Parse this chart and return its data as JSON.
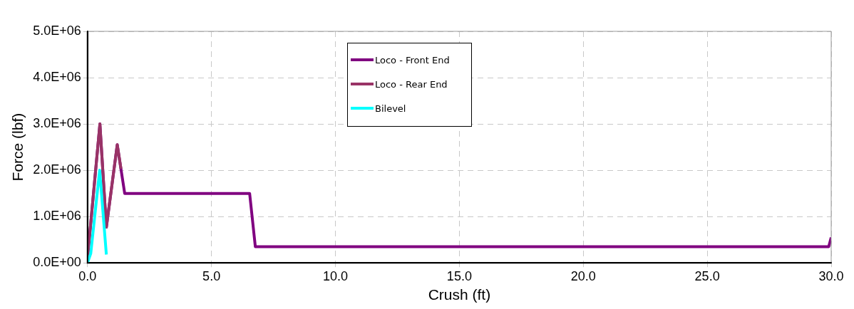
{
  "chart_data": {
    "type": "line",
    "xlabel": "Crush (ft)",
    "ylabel": "Force (lbf)",
    "xlim": [
      0,
      30
    ],
    "xticks": [
      {
        "value": 0,
        "label": "0.0"
      },
      {
        "value": 5,
        "label": "5.0"
      },
      {
        "value": 10,
        "label": "10.0"
      },
      {
        "value": 15,
        "label": "15.0"
      },
      {
        "value": 20,
        "label": "20.0"
      },
      {
        "value": 25,
        "label": "25.0"
      },
      {
        "value": 30,
        "label": "30.0"
      }
    ],
    "ylim": [
      0,
      5000000
    ],
    "yticks": [
      {
        "value": 0,
        "label": "0.0E+00"
      },
      {
        "value": 1000000,
        "label": "1.0E+06"
      },
      {
        "value": 2000000,
        "label": "2.0E+06"
      },
      {
        "value": 3000000,
        "label": "3.0E+06"
      },
      {
        "value": 4000000,
        "label": "4.0E+06"
      },
      {
        "value": 5000000,
        "label": "5.0E+06"
      }
    ],
    "grid": true,
    "legend": "top",
    "marker": "none",
    "line_style": "solid",
    "series": [
      {
        "name": "Loco - Front End",
        "color": "#800080",
        "x": [
          0,
          0.5,
          0.76,
          1.2,
          1.5,
          6.54,
          6.77,
          29.9,
          30
        ],
        "values": [
          100000,
          3000000,
          770000,
          2550000,
          1500000,
          1500000,
          350000,
          350000,
          550000
        ]
      },
      {
        "name": "Loco - Rear End",
        "color": "#993366",
        "x": [
          0,
          0.5,
          0.76,
          1.2,
          1.35
        ],
        "values": [
          100000,
          3000000,
          770000,
          2550000,
          2030000
        ]
      },
      {
        "name": "Bilevel",
        "color": "#00ffff",
        "x": [
          0,
          0.13,
          0.49,
          0.76
        ],
        "values": [
          0,
          200000,
          2000000,
          180000
        ]
      }
    ]
  }
}
